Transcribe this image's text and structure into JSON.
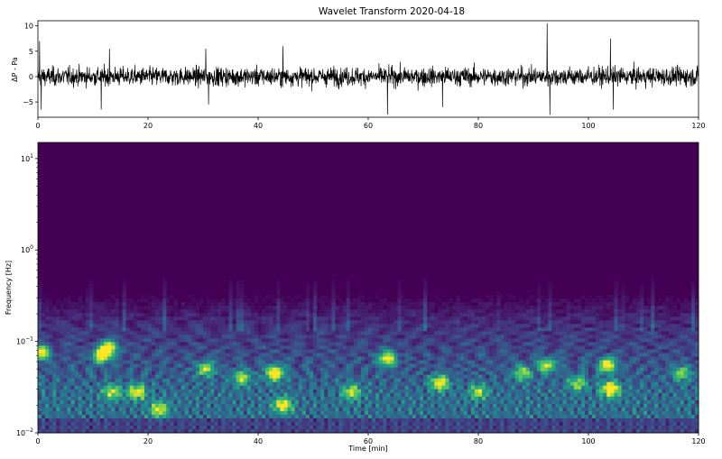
{
  "chart_data": [
    {
      "type": "line",
      "title": "Wavelet Transform 2020-04-18",
      "ylabel": "ΔP - Pa",
      "xlim": [
        0,
        120
      ],
      "ylim": [
        -8,
        11
      ],
      "xticks": [
        "0",
        "20",
        "40",
        "60",
        "80",
        "100",
        "120"
      ],
      "yticks": [
        "−5",
        "0",
        "5",
        "10"
      ],
      "series": [
        {
          "color": "#000000",
          "noise_sigma": 1.3,
          "spikes": [
            {
              "x": 0.3,
              "y": 7
            },
            {
              "x": 0.6,
              "y": -6.5
            },
            {
              "x": 11.5,
              "y": -6.5
            },
            {
              "x": 13.0,
              "y": 5.5
            },
            {
              "x": 30.5,
              "y": 5.5
            },
            {
              "x": 31.0,
              "y": -5.5
            },
            {
              "x": 44.5,
              "y": 6
            },
            {
              "x": 63.5,
              "y": -7.5
            },
            {
              "x": 73.5,
              "y": -6
            },
            {
              "x": 92.5,
              "y": 10.5
            },
            {
              "x": 93.0,
              "y": -7.5
            },
            {
              "x": 104.0,
              "y": 7.5
            },
            {
              "x": 104.5,
              "y": -6.5
            }
          ]
        }
      ]
    },
    {
      "type": "heatmap",
      "xlabel": "Time  [min]",
      "ylabel": "Frequency [Hz]",
      "xlim": [
        0,
        120
      ],
      "ylim": [
        0.01,
        15
      ],
      "yscale": "log",
      "xticks": [
        "0",
        "20",
        "40",
        "60",
        "80",
        "100",
        "120"
      ],
      "yticks": [
        {
          "base": "10",
          "exp": "−2",
          "value": 0.01
        },
        {
          "base": "10",
          "exp": "−1",
          "value": 0.1
        },
        {
          "base": "10",
          "exp": "0",
          "value": 1
        },
        {
          "base": "10",
          "exp": "1",
          "value": 10
        }
      ],
      "colormap": [
        "#440154",
        "#472d7b",
        "#3b528b",
        "#2c728e",
        "#21918c",
        "#28ae80",
        "#5ec962",
        "#addc30",
        "#fde725"
      ],
      "hotspots": [
        {
          "t": 0.5,
          "f": 0.075,
          "v": 0.85
        },
        {
          "t": 11.5,
          "f": 0.07,
          "v": 0.9
        },
        {
          "t": 13.0,
          "f": 0.085,
          "v": 0.85
        },
        {
          "t": 13.5,
          "f": 0.028,
          "v": 0.6
        },
        {
          "t": 18.0,
          "f": 0.028,
          "v": 0.7
        },
        {
          "t": 22.0,
          "f": 0.018,
          "v": 0.65
        },
        {
          "t": 30.5,
          "f": 0.05,
          "v": 0.65
        },
        {
          "t": 37.0,
          "f": 0.04,
          "v": 0.6
        },
        {
          "t": 43.0,
          "f": 0.045,
          "v": 0.95
        },
        {
          "t": 44.5,
          "f": 0.02,
          "v": 0.75
        },
        {
          "t": 57.0,
          "f": 0.028,
          "v": 0.6
        },
        {
          "t": 63.5,
          "f": 0.065,
          "v": 0.85
        },
        {
          "t": 73.0,
          "f": 0.035,
          "v": 0.8
        },
        {
          "t": 80.0,
          "f": 0.028,
          "v": 0.55
        },
        {
          "t": 88.0,
          "f": 0.045,
          "v": 0.6
        },
        {
          "t": 92.5,
          "f": 0.055,
          "v": 0.7
        },
        {
          "t": 98.0,
          "f": 0.035,
          "v": 0.55
        },
        {
          "t": 103.5,
          "f": 0.055,
          "v": 0.85
        },
        {
          "t": 104.0,
          "f": 0.03,
          "v": 0.95
        },
        {
          "t": 117.0,
          "f": 0.045,
          "v": 0.55
        }
      ]
    }
  ]
}
